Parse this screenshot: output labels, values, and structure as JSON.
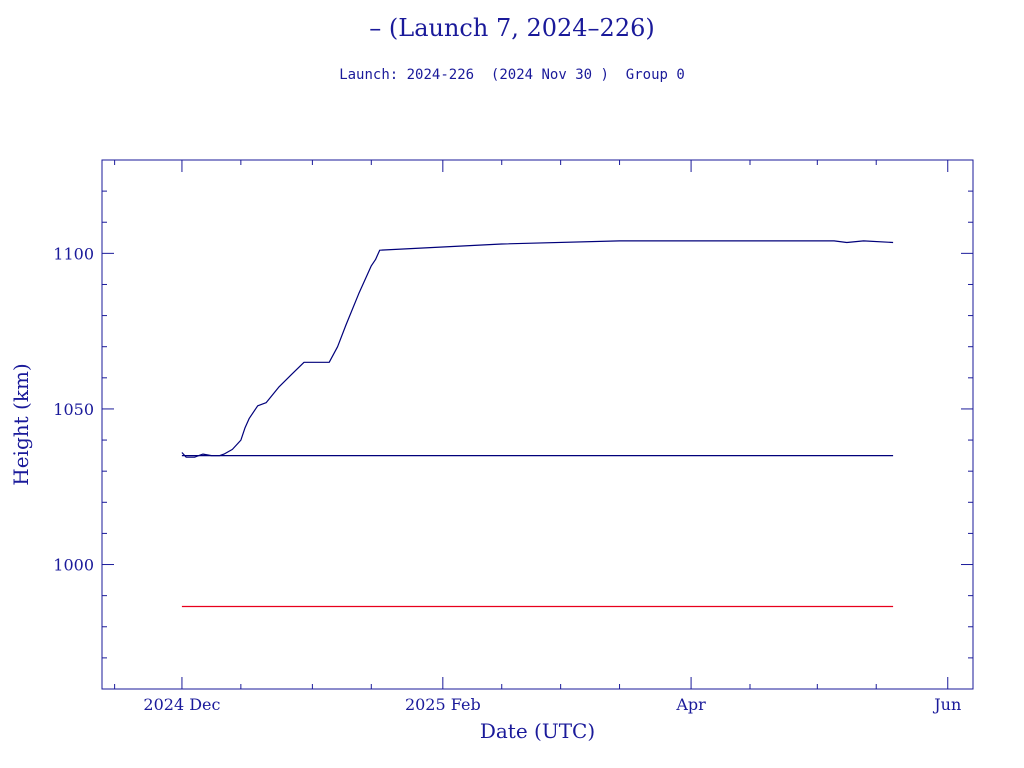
{
  "chart_data": {
    "type": "line",
    "title": "– (Launch 7, 2024–226)",
    "subtitle": "Launch: 2024-226  (2024 Nov 30 )  Group 0",
    "xlabel": "Date (UTC)",
    "ylabel": "Height (km)",
    "xlim": [
      "2024-11-12",
      "2025-06-07"
    ],
    "ylim": [
      960,
      1130
    ],
    "x_ticks": [
      {
        "date": "2024-12-01",
        "label": "2024 Dec"
      },
      {
        "date": "2025-02-01",
        "label": "2025 Feb"
      },
      {
        "date": "2025-04-01",
        "label": "Apr"
      },
      {
        "date": "2025-06-01",
        "label": "Jun"
      }
    ],
    "x_minor_ticks": [
      "2024-11-15",
      "2024-12-15",
      "2025-01-01",
      "2025-01-15",
      "2025-02-15",
      "2025-03-01",
      "2025-03-15",
      "2025-04-15",
      "2025-05-01",
      "2025-05-15"
    ],
    "y_ticks": [
      1000,
      1050,
      1100
    ],
    "y_minor_step": 10,
    "grid": false,
    "series": [
      {
        "color": "#00007a",
        "x": [
          "2024-12-01",
          "2024-12-02",
          "2024-12-04",
          "2024-12-05",
          "2024-12-06",
          "2024-12-08",
          "2024-12-10",
          "2024-12-11",
          "2024-12-13",
          "2024-12-15",
          "2024-12-16",
          "2024-12-17",
          "2024-12-19",
          "2024-12-21",
          "2024-12-24",
          "2024-12-27",
          "2024-12-30",
          "2025-01-01",
          "2025-01-03",
          "2025-01-05",
          "2025-01-07",
          "2025-01-09",
          "2025-01-12",
          "2025-01-14",
          "2025-01-15",
          "2025-01-16",
          "2025-01-17",
          "2025-02-15",
          "2025-03-15",
          "2025-04-15",
          "2025-04-25",
          "2025-05-05",
          "2025-05-08",
          "2025-05-12",
          "2025-05-19"
        ],
        "y": [
          1036,
          1034.5,
          1034.5,
          1035,
          1035.5,
          1035,
          1035,
          1035.5,
          1037,
          1040,
          1044,
          1047,
          1051,
          1052,
          1057,
          1061,
          1065,
          1065,
          1065,
          1065,
          1070,
          1077,
          1087,
          1093,
          1096,
          1098,
          1101,
          1103,
          1104,
          1104,
          1104,
          1104,
          1103.5,
          1104,
          1103.5
        ]
      },
      {
        "color": "#00007a",
        "x": [
          "2024-12-01",
          "2025-05-19"
        ],
        "y": [
          1035,
          1035
        ]
      },
      {
        "color": "#e8001c",
        "x": [
          "2024-12-01",
          "2025-05-19"
        ],
        "y": [
          986.5,
          986.5
        ]
      }
    ]
  }
}
